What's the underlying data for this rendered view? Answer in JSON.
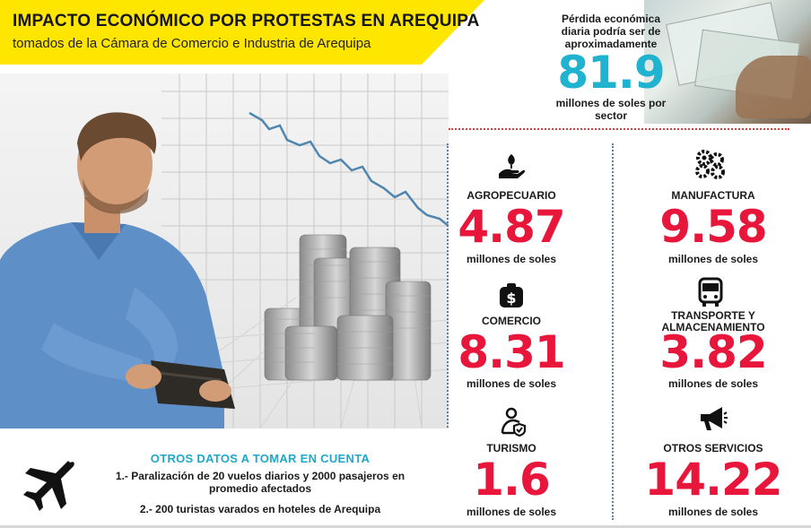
{
  "header": {
    "title": "IMPACTO ECONÓMICO POR PROTESTAS EN AREQUIPA",
    "subtitle": "tomados de la Cámara de Comercio e Industria de Arequipa"
  },
  "loss": {
    "intro": "Pérdida económica diaria podría ser de aproximadamente",
    "value": "81.9",
    "unit": "millones de soles por sector"
  },
  "sectors": [
    {
      "name": "AGROPECUARIO",
      "value": "4.87",
      "unit": "millones de soles",
      "icon": "plant-in-hand-icon"
    },
    {
      "name": "MANUFACTURA",
      "value": "9.58",
      "unit": "millones de soles",
      "icon": "gears-icon"
    },
    {
      "name": "COMERCIO",
      "value": "8.31",
      "unit": "millones de soles",
      "icon": "money-bag-icon"
    },
    {
      "name": "TRANSPORTE Y ALMACENAMIENTO",
      "value": "3.82",
      "unit": "millones de soles",
      "icon": "bus-icon"
    },
    {
      "name": "TURISMO",
      "value": "1.6",
      "unit": "millones de soles",
      "icon": "tourist-icon"
    },
    {
      "name": "OTROS SERVICIOS",
      "value": "14.22",
      "unit": "millones de soles",
      "icon": "megaphone-icon"
    }
  ],
  "other_data": {
    "title": "OTROS DATOS A TOMAR EN CUENTA",
    "items": [
      "1.- Paralización de 20 vuelos diarios y 2000 pasajeros en promedio afectados",
      "2.- 200 turistas varados en hoteles de Arequipa"
    ],
    "icon": "airplane-icon"
  },
  "colors": {
    "header_band": "#ffe600",
    "accent_cyan": "#1fb3cf",
    "accent_red": "#e8163b"
  }
}
